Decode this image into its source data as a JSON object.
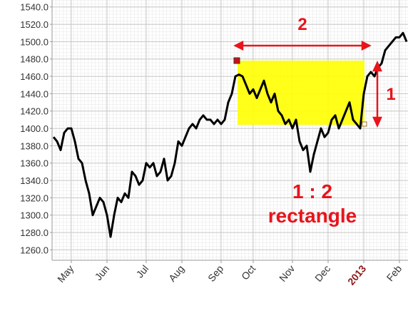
{
  "chart_data": {
    "type": "line",
    "color": "#000000",
    "grid": true,
    "ylim": [
      1248,
      1548
    ],
    "yticks": [
      {
        "value": 1260,
        "label": "1260.0"
      },
      {
        "value": 1280,
        "label": "1280.0"
      },
      {
        "value": 1300,
        "label": "1300.0"
      },
      {
        "value": 1320,
        "label": "1320.0"
      },
      {
        "value": 1340,
        "label": "1340.0"
      },
      {
        "value": 1360,
        "label": "1360.0"
      },
      {
        "value": 1380,
        "label": "1380.0"
      },
      {
        "value": 1400,
        "label": "1400.0"
      },
      {
        "value": 1420,
        "label": "1420.0"
      },
      {
        "value": 1440,
        "label": "1440.0"
      },
      {
        "value": 1460,
        "label": "1460.0"
      },
      {
        "value": 1480,
        "label": "1480.0"
      },
      {
        "value": 1500,
        "label": "1500.0"
      },
      {
        "value": 1520,
        "label": "1520.0"
      },
      {
        "value": 1540,
        "label": "1540.0"
      }
    ],
    "categories": [
      null,
      null,
      null,
      null,
      null,
      "May",
      null,
      null,
      null,
      null,
      null,
      null,
      null,
      null,
      null,
      "Jun",
      null,
      null,
      null,
      null,
      null,
      null,
      null,
      null,
      null,
      null,
      "Jul",
      null,
      null,
      null,
      null,
      null,
      null,
      null,
      null,
      null,
      "Aug",
      null,
      null,
      null,
      null,
      null,
      null,
      null,
      null,
      null,
      null,
      "Sep",
      null,
      null,
      null,
      null,
      null,
      null,
      null,
      null,
      "Oct",
      null,
      null,
      null,
      null,
      null,
      null,
      null,
      null,
      null,
      null,
      "Nov",
      null,
      null,
      null,
      null,
      null,
      null,
      null,
      null,
      null,
      "Dec",
      null,
      null,
      null,
      null,
      null,
      null,
      null,
      null,
      null,
      "2013",
      null,
      null,
      null,
      null,
      null,
      null,
      null,
      null,
      null,
      "Feb",
      null,
      null
    ],
    "values": [
      1390,
      1385,
      1375,
      1395,
      1400,
      1400,
      1385,
      1365,
      1360,
      1340,
      1325,
      1300,
      1310,
      1320,
      1315,
      1300,
      1275,
      1300,
      1320,
      1315,
      1325,
      1320,
      1350,
      1345,
      1335,
      1340,
      1360,
      1355,
      1360,
      1345,
      1350,
      1365,
      1340,
      1345,
      1360,
      1385,
      1380,
      1390,
      1400,
      1405,
      1400,
      1410,
      1415,
      1410,
      1410,
      1405,
      1410,
      1405,
      1410,
      1430,
      1440,
      1460,
      1462,
      1460,
      1450,
      1440,
      1445,
      1435,
      1445,
      1455,
      1440,
      1430,
      1440,
      1420,
      1415,
      1405,
      1410,
      1400,
      1410,
      1385,
      1375,
      1380,
      1350,
      1370,
      1385,
      1400,
      1390,
      1395,
      1410,
      1415,
      1400,
      1410,
      1420,
      1430,
      1410,
      1405,
      1400,
      1440,
      1460,
      1465,
      1460,
      1470,
      1475,
      1490,
      1495,
      1500,
      1505,
      1505,
      1510,
      1500
    ],
    "highlight_category_index": 87,
    "highlight_color": "#8b1a1a",
    "annotations": [
      "2",
      "1",
      "1 : 2",
      "rectangle"
    ]
  }
}
